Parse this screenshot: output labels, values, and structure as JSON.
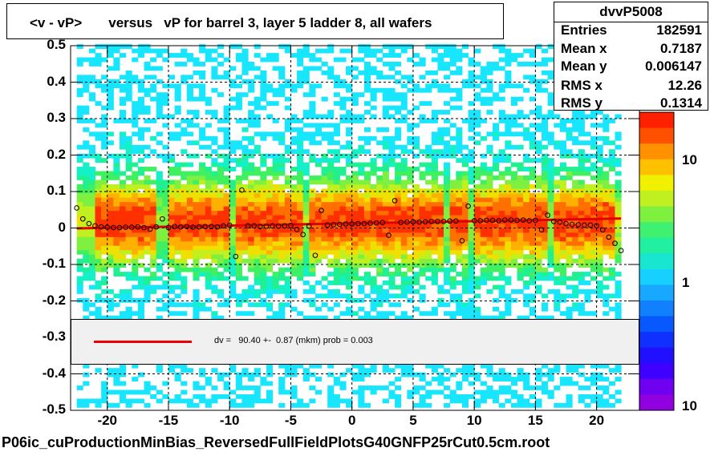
{
  "chart_data": {
    "type": "heatmap",
    "title": "<v - vP>       versus   vP for barrel 3, layer 5 ladder 8, all wafers",
    "xlim": [
      -23,
      23.5
    ],
    "ylim": [
      -0.5,
      0.5
    ],
    "x_ticks": [
      "-20",
      "-15",
      "-10",
      "-5",
      "0",
      "5",
      "10",
      "15",
      "20"
    ],
    "x_tick_values": [
      -20,
      -15,
      -10,
      -5,
      0,
      5,
      10,
      15,
      20
    ],
    "y_ticks": [
      "0.5",
      "0.4",
      "0.3",
      "0.2",
      "0.1",
      "0",
      "-0.1",
      "-0.2",
      "-0.3",
      "-0.4",
      "-0.5"
    ],
    "y_tick_values": [
      0.5,
      0.4,
      0.3,
      0.2,
      0.1,
      0,
      -0.1,
      -0.2,
      -0.3,
      -0.4,
      -0.5
    ],
    "z_ticks": [
      "10",
      "1",
      "10"
    ],
    "z_scale": "log",
    "grid": true,
    "profile_points": {
      "x": [
        -22.5,
        -22,
        -21.5,
        -21,
        -20.5,
        -20,
        -19.5,
        -19,
        -18.5,
        -18,
        -17.5,
        -17,
        -16.5,
        -16,
        -15.5,
        -15,
        -14.5,
        -14,
        -13.5,
        -13,
        -12.5,
        -12,
        -11.5,
        -11,
        -10.5,
        -10,
        -9.5,
        -9,
        -8.5,
        -8,
        -7.5,
        -7,
        -6.5,
        -6,
        -5.5,
        -5,
        -4.5,
        -4,
        -3.5,
        -3,
        -2.5,
        -2,
        -1.5,
        -1,
        -0.5,
        0,
        0.5,
        1,
        1.5,
        2,
        2.5,
        3,
        3.5,
        4,
        4.5,
        5,
        5.5,
        6,
        6.5,
        7,
        7.5,
        8,
        8.5,
        9,
        9.5,
        10,
        10.5,
        11,
        11.5,
        12,
        12.5,
        13,
        13.5,
        14,
        14.5,
        15,
        15.5,
        16,
        16.5,
        17,
        17.5,
        18,
        18.5,
        19,
        19.5,
        20,
        20.5,
        21,
        21.5,
        22
      ],
      "y": [
        0.055,
        0.025,
        0.012,
        0.006,
        0.003,
        0.002,
        0.001,
        0.001,
        0.002,
        0.002,
        0.003,
        0.001,
        -0.003,
        0.003,
        0.025,
        0.001,
        0.004,
        0.003,
        0.004,
        0.002,
        0.003,
        0.004,
        0.004,
        0.003,
        0.006,
        0.008,
        -0.078,
        0.104,
        0.006,
        0.006,
        0.004,
        0.005,
        0.006,
        0.005,
        0.006,
        0.007,
        -0.004,
        -0.018,
        0.005,
        -0.075,
        0.048,
        0.008,
        0.009,
        0.01,
        0.011,
        0.011,
        0.012,
        0.012,
        0.013,
        0.014,
        0.015,
        -0.02,
        0.075,
        0.015,
        0.016,
        0.017,
        0.016,
        0.017,
        0.018,
        0.018,
        0.018,
        0.019,
        0.019,
        -0.035,
        0.06,
        0.02,
        0.02,
        0.021,
        0.021,
        0.02,
        0.022,
        0.022,
        0.021,
        0.022,
        0.02,
        0.021,
        -0.005,
        0.035,
        0.018,
        0.016,
        0.012,
        0.01,
        0.009,
        0.008,
        0.008,
        0.006,
        -0.005,
        -0.025,
        -0.042,
        -0.062
      ]
    },
    "fit_line": {
      "x": [
        -22.5,
        22
      ],
      "y": [
        -0.001,
        0.026
      ],
      "color": "#e00000"
    }
  },
  "stats": {
    "name": "dvvP5008",
    "rows": [
      {
        "label": "Entries",
        "value": "182591"
      },
      {
        "label": "Mean x",
        "value": "0.7187"
      },
      {
        "label": "Mean y",
        "value": "0.006147"
      },
      {
        "label": "RMS x",
        "value": "12.26"
      },
      {
        "label": "RMS y",
        "value": "0.1314"
      }
    ]
  },
  "legend": {
    "fit_text": "dv =   90.40 +-  0.87 (mkm) prob = 0.003",
    "line_color": "#e00000"
  },
  "footer": "P06ic_cuProductionMinBias_ReversedFullFieldPlotsG40GNFP25rCut0.5cm.root"
}
